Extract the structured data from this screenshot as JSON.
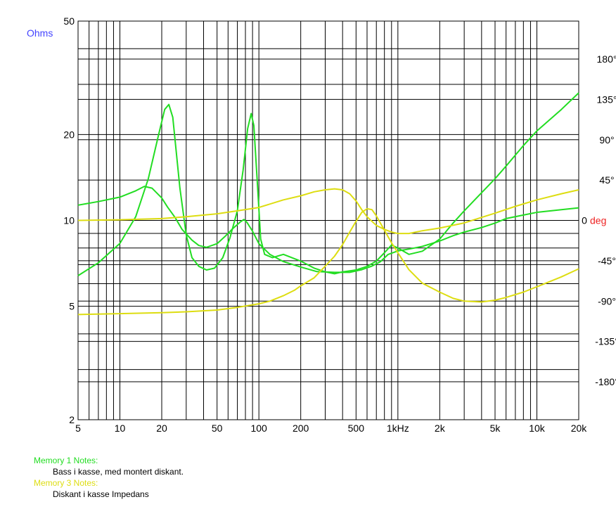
{
  "colors": {
    "memory1": "#22dd22",
    "memory3": "#dddd11",
    "ohms_label": "#4444ff",
    "deg_label": "#ee2222",
    "grid": "#000000"
  },
  "chart_data": {
    "type": "line",
    "title": "",
    "x_scale": "log",
    "x_range": [
      5,
      20000
    ],
    "x_ticks": [
      {
        "value": 5,
        "label": "5"
      },
      {
        "value": 10,
        "label": "10"
      },
      {
        "value": 20,
        "label": "20"
      },
      {
        "value": 50,
        "label": "50"
      },
      {
        "value": 100,
        "label": "100"
      },
      {
        "value": 200,
        "label": "200"
      },
      {
        "value": 500,
        "label": "500"
      },
      {
        "value": 1000,
        "label": "1kHz"
      },
      {
        "value": 2000,
        "label": "2k"
      },
      {
        "value": 5000,
        "label": "5k"
      },
      {
        "value": 10000,
        "label": "10k"
      },
      {
        "value": 20000,
        "label": "20k"
      }
    ],
    "y_left": {
      "unit_label": "Ohms",
      "scale": "log",
      "range": [
        2,
        50
      ],
      "ticks": [
        {
          "value": 2,
          "label": "2"
        },
        {
          "value": 5,
          "label": "5"
        },
        {
          "value": 10,
          "label": "10"
        },
        {
          "value": 20,
          "label": "20"
        },
        {
          "value": 50,
          "label": "50"
        }
      ]
    },
    "y_right": {
      "unit_label": "deg",
      "range": [
        -240,
        240
      ],
      "ticks": [
        {
          "value": 180,
          "label": "180°"
        },
        {
          "value": 135,
          "label": "135°"
        },
        {
          "value": 90,
          "label": "90°"
        },
        {
          "value": 45,
          "label": "45°"
        },
        {
          "value": 0,
          "label": "0"
        },
        {
          "value": -45,
          "label": "-45°"
        },
        {
          "value": -90,
          "label": "-90°"
        },
        {
          "value": -135,
          "label": "-135°"
        },
        {
          "value": -180,
          "label": "-180°"
        }
      ]
    },
    "grid": true,
    "series": [
      {
        "name": "Memory 1",
        "quantity": "impedance",
        "axis": "left",
        "color": "#22dd22",
        "points": [
          [
            5,
            6.4
          ],
          [
            7,
            7.1
          ],
          [
            10,
            8.3
          ],
          [
            13,
            10.3
          ],
          [
            16,
            14
          ],
          [
            19,
            20
          ],
          [
            21,
            24.5
          ],
          [
            22.5,
            25.5
          ],
          [
            24,
            23
          ],
          [
            27,
            13
          ],
          [
            30,
            8.9
          ],
          [
            33,
            7.4
          ],
          [
            37,
            6.9
          ],
          [
            42,
            6.7
          ],
          [
            48,
            6.8
          ],
          [
            55,
            7.4
          ],
          [
            62,
            8.7
          ],
          [
            70,
            10.8
          ],
          [
            77,
            15
          ],
          [
            83,
            21
          ],
          [
            88,
            23.7
          ],
          [
            92,
            21.5
          ],
          [
            97,
            14
          ],
          [
            103,
            8.6
          ],
          [
            110,
            7.6
          ],
          [
            125,
            7.4
          ],
          [
            150,
            7.6
          ],
          [
            200,
            7.2
          ],
          [
            250,
            6.8
          ],
          [
            300,
            6.6
          ],
          [
            350,
            6.5
          ],
          [
            400,
            6.6
          ],
          [
            500,
            6.7
          ],
          [
            600,
            6.9
          ],
          [
            700,
            7.2
          ],
          [
            800,
            7.7
          ],
          [
            900,
            8.2
          ],
          [
            1000,
            8.0
          ],
          [
            1200,
            7.6
          ],
          [
            1500,
            7.8
          ],
          [
            2000,
            8.6
          ],
          [
            2500,
            9.8
          ],
          [
            3000,
            10.8
          ],
          [
            4000,
            12.5
          ],
          [
            5000,
            14
          ],
          [
            6000,
            15.5
          ],
          [
            8000,
            18.3
          ],
          [
            10000,
            20.6
          ],
          [
            15000,
            24.5
          ],
          [
            20000,
            28
          ]
        ]
      },
      {
        "name": "Memory 1",
        "quantity": "phase",
        "axis": "right",
        "color": "#22dd22",
        "points": [
          [
            5,
            17
          ],
          [
            7,
            21
          ],
          [
            10,
            26
          ],
          [
            13,
            33
          ],
          [
            15,
            38
          ],
          [
            17,
            36
          ],
          [
            20,
            25
          ],
          [
            22,
            15
          ],
          [
            25,
            3
          ],
          [
            28,
            -10
          ],
          [
            33,
            -22
          ],
          [
            37,
            -28
          ],
          [
            42,
            -30
          ],
          [
            50,
            -26
          ],
          [
            57,
            -18
          ],
          [
            65,
            -9
          ],
          [
            73,
            -2
          ],
          [
            78,
            1
          ],
          [
            82,
            -2
          ],
          [
            90,
            -12
          ],
          [
            100,
            -26
          ],
          [
            120,
            -38
          ],
          [
            150,
            -46
          ],
          [
            200,
            -52
          ],
          [
            260,
            -57
          ],
          [
            350,
            -58
          ],
          [
            450,
            -58
          ],
          [
            550,
            -55
          ],
          [
            650,
            -51
          ],
          [
            750,
            -46
          ],
          [
            850,
            -38
          ],
          [
            1000,
            -34
          ],
          [
            1200,
            -32
          ],
          [
            1500,
            -29
          ],
          [
            2000,
            -23
          ],
          [
            2500,
            -17
          ],
          [
            3000,
            -13
          ],
          [
            4000,
            -8
          ],
          [
            5000,
            -3
          ],
          [
            6000,
            2
          ],
          [
            8000,
            6
          ],
          [
            10000,
            9
          ],
          [
            15000,
            12
          ],
          [
            20000,
            14
          ]
        ]
      },
      {
        "name": "Memory 3",
        "quantity": "impedance",
        "axis": "left",
        "color": "#dddd11",
        "points": [
          [
            5,
            10
          ],
          [
            10,
            10.05
          ],
          [
            20,
            10.15
          ],
          [
            30,
            10.3
          ],
          [
            50,
            10.55
          ],
          [
            70,
            10.8
          ],
          [
            100,
            11.1
          ],
          [
            150,
            11.8
          ],
          [
            200,
            12.2
          ],
          [
            250,
            12.6
          ],
          [
            300,
            12.8
          ],
          [
            350,
            12.9
          ],
          [
            400,
            12.8
          ],
          [
            450,
            12.4
          ],
          [
            500,
            11.7
          ],
          [
            550,
            10.9
          ],
          [
            600,
            10.3
          ],
          [
            700,
            9.6
          ],
          [
            800,
            9.3
          ],
          [
            900,
            9.1
          ],
          [
            1000,
            9.0
          ],
          [
            1200,
            9.0
          ],
          [
            1500,
            9.2
          ],
          [
            2000,
            9.4
          ],
          [
            3000,
            9.8
          ],
          [
            5000,
            10.6
          ],
          [
            7000,
            11.2
          ],
          [
            10000,
            11.8
          ],
          [
            15000,
            12.4
          ],
          [
            20000,
            12.8
          ]
        ]
      },
      {
        "name": "Memory 3",
        "quantity": "phase",
        "axis": "right",
        "color": "#dddd11",
        "points": [
          [
            5,
            -105
          ],
          [
            10,
            -104
          ],
          [
            20,
            -103
          ],
          [
            30,
            -102
          ],
          [
            50,
            -100
          ],
          [
            70,
            -97
          ],
          [
            100,
            -93
          ],
          [
            120,
            -90
          ],
          [
            150,
            -84
          ],
          [
            180,
            -78
          ],
          [
            200,
            -73
          ],
          [
            250,
            -64
          ],
          [
            300,
            -51
          ],
          [
            350,
            -40
          ],
          [
            400,
            -27
          ],
          [
            450,
            -13
          ],
          [
            500,
            -1
          ],
          [
            550,
            9
          ],
          [
            600,
            13
          ],
          [
            650,
            12
          ],
          [
            700,
            5
          ],
          [
            800,
            -11
          ],
          [
            900,
            -25
          ],
          [
            1000,
            -36
          ],
          [
            1200,
            -55
          ],
          [
            1500,
            -70
          ],
          [
            2000,
            -80
          ],
          [
            2500,
            -87
          ],
          [
            3000,
            -90
          ],
          [
            4000,
            -91
          ],
          [
            5000,
            -89
          ],
          [
            6000,
            -86
          ],
          [
            8000,
            -80
          ],
          [
            10000,
            -74
          ],
          [
            15000,
            -63
          ],
          [
            20000,
            -54
          ]
        ]
      }
    ]
  },
  "notes": {
    "memory1_header": "Memory 1 Notes:",
    "memory1_text": "Bass i kasse, med montert diskant.",
    "memory3_header": "Memory 3 Notes:",
    "memory3_text": "Diskant i kasse Impedans"
  }
}
